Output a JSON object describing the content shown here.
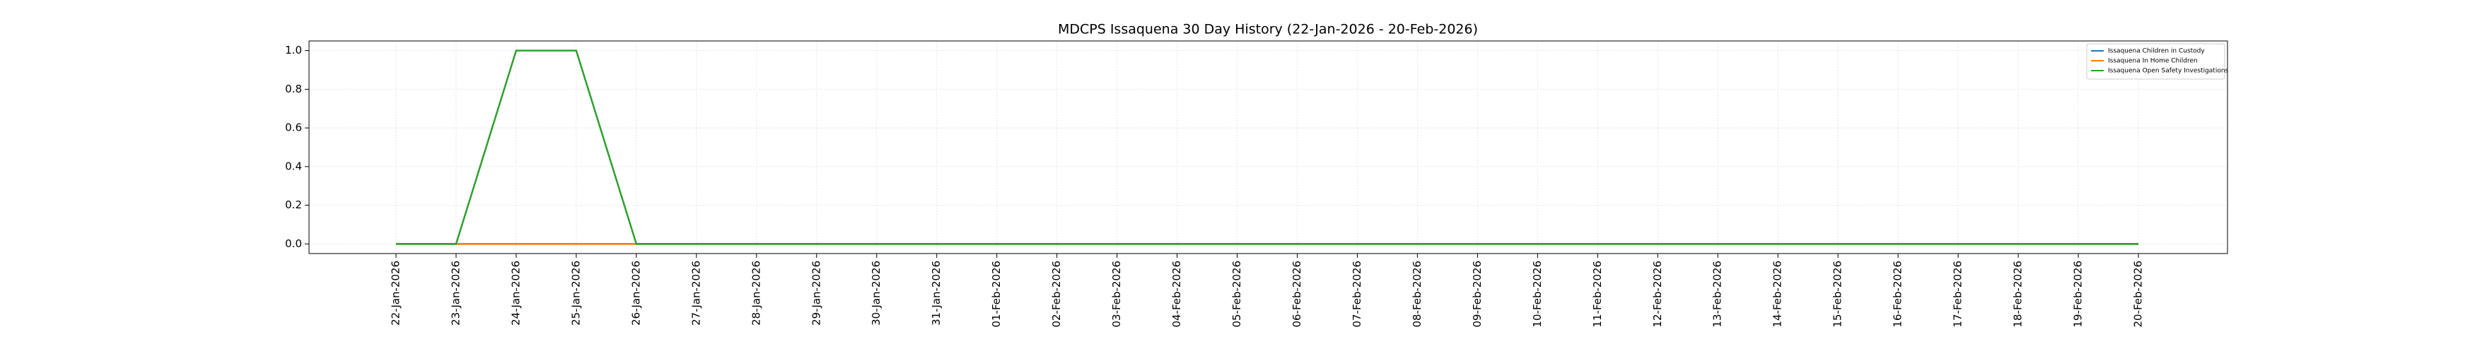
{
  "chart_data": {
    "type": "line",
    "title": "MDCPS Issaquena 30 Day History (22-Jan-2026 - 20-Feb-2026)",
    "categories": [
      "22-Jan-2026",
      "23-Jan-2026",
      "24-Jan-2026",
      "25-Jan-2026",
      "26-Jan-2026",
      "27-Jan-2026",
      "28-Jan-2026",
      "29-Jan-2026",
      "30-Jan-2026",
      "31-Jan-2026",
      "01-Feb-2026",
      "02-Feb-2026",
      "03-Feb-2026",
      "04-Feb-2026",
      "05-Feb-2026",
      "06-Feb-2026",
      "07-Feb-2026",
      "08-Feb-2026",
      "09-Feb-2026",
      "10-Feb-2026",
      "11-Feb-2026",
      "12-Feb-2026",
      "13-Feb-2026",
      "14-Feb-2026",
      "15-Feb-2026",
      "16-Feb-2026",
      "17-Feb-2026",
      "18-Feb-2026",
      "19-Feb-2026",
      "20-Feb-2026"
    ],
    "series": [
      {
        "name": "Issaquena Children in Custody",
        "color": "#1f77b4",
        "values": [
          0,
          0,
          0,
          0,
          0,
          0,
          0,
          0,
          0,
          0,
          0,
          0,
          0,
          0,
          0,
          0,
          0,
          0,
          0,
          0,
          0,
          0,
          0,
          0,
          0,
          0,
          0,
          0,
          0,
          0
        ]
      },
      {
        "name": "Issaquena In Home Children",
        "color": "#ff7f0e",
        "values": [
          0,
          0,
          0,
          0,
          0,
          0,
          0,
          0,
          0,
          0,
          0,
          0,
          0,
          0,
          0,
          0,
          0,
          0,
          0,
          0,
          0,
          0,
          0,
          0,
          0,
          0,
          0,
          0,
          0,
          0
        ]
      },
      {
        "name": "Issaquena Open Safety Investigations",
        "color": "#2ca02c",
        "values": [
          0,
          0,
          1,
          1,
          0,
          0,
          0,
          0,
          0,
          0,
          0,
          0,
          0,
          0,
          0,
          0,
          0,
          0,
          0,
          0,
          0,
          0,
          0,
          0,
          0,
          0,
          0,
          0,
          0,
          0
        ]
      }
    ],
    "ylim": [
      -0.05,
      1.05
    ],
    "yticks": [
      {
        "value": 0,
        "label": "0.0"
      },
      {
        "value": 0.2,
        "label": "0.2"
      },
      {
        "value": 0.4,
        "label": "0.4"
      },
      {
        "value": 0.6,
        "label": "0.6"
      },
      {
        "value": 0.8,
        "label": "0.8"
      },
      {
        "value": 1,
        "label": "1.0"
      }
    ],
    "grid": true,
    "legend": "upper right"
  }
}
